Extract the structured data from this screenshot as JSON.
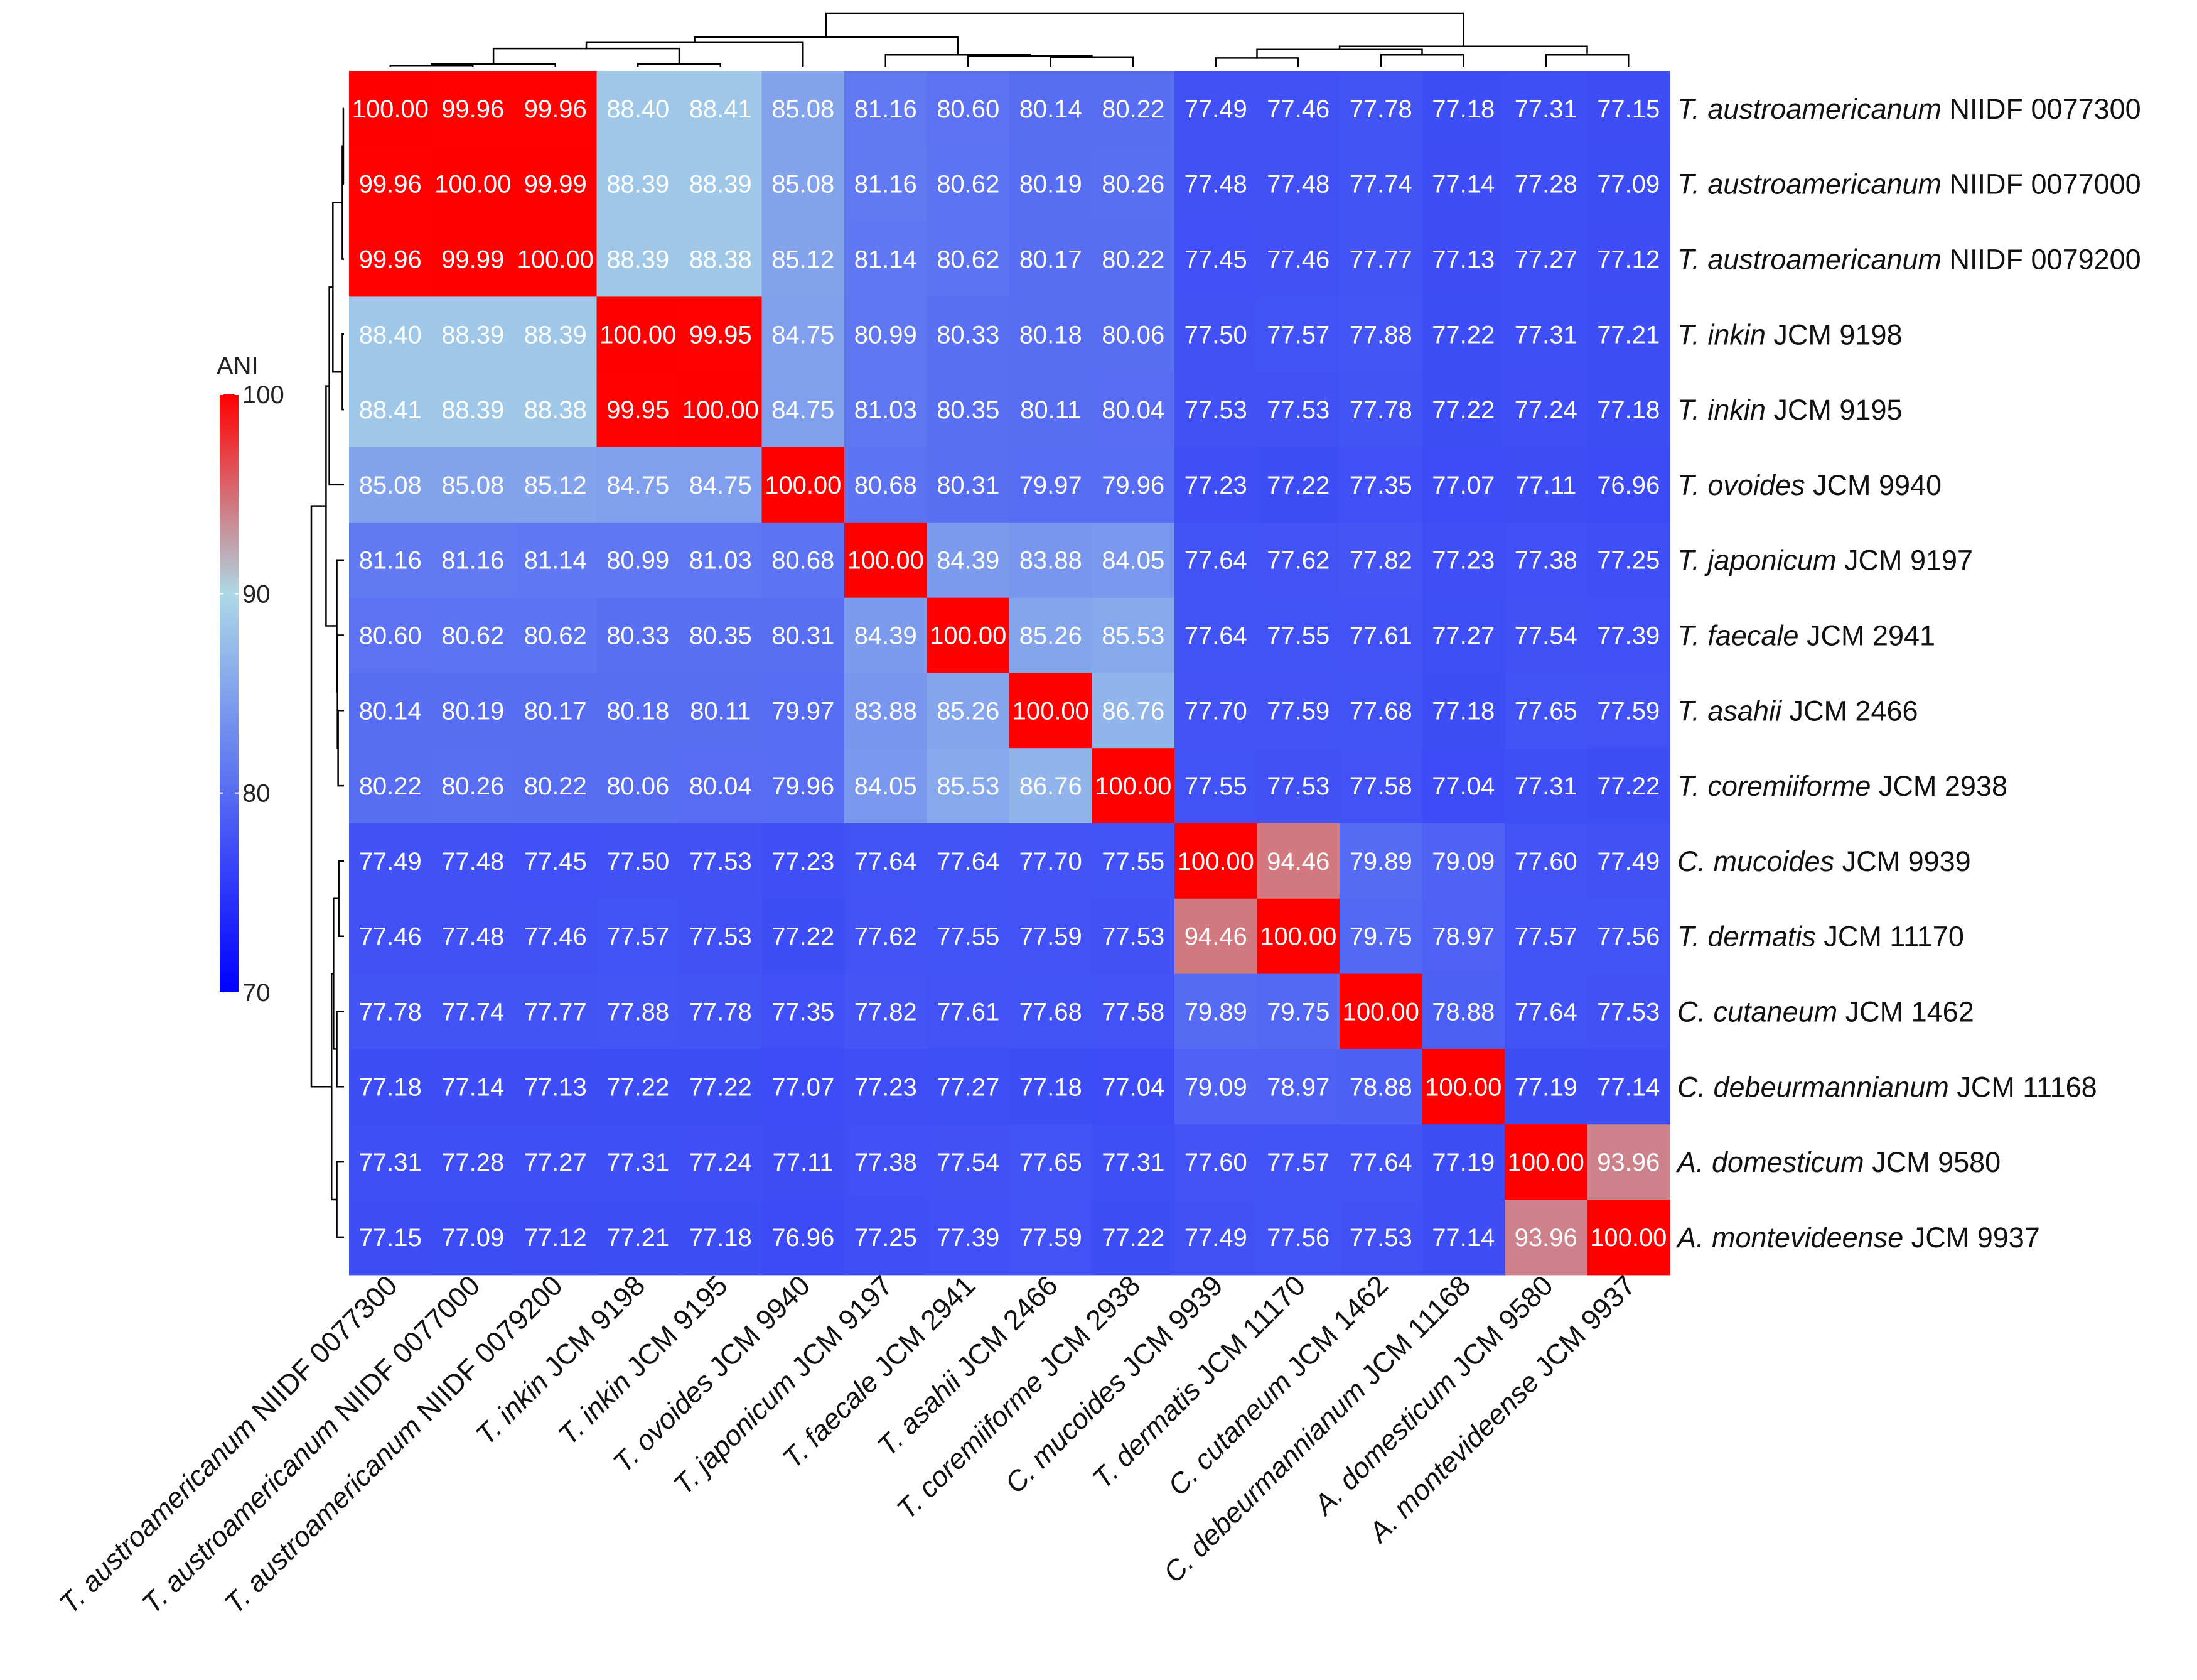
{
  "chart_data": {
    "type": "heatmap",
    "title": "",
    "labels": [
      {
        "italic": "T. austroamericanum",
        "rest": " NIIDF 0077300"
      },
      {
        "italic": "T. austroamericanum",
        "rest": " NIIDF 0077000"
      },
      {
        "italic": "T. austroamericanum",
        "rest": " NIIDF 0079200"
      },
      {
        "italic": "T. inkin",
        "rest": " JCM 9198"
      },
      {
        "italic": "T. inkin",
        "rest": " JCM 9195"
      },
      {
        "italic": "T. ovoides",
        "rest": " JCM 9940"
      },
      {
        "italic": "T. japonicum",
        "rest": " JCM 9197"
      },
      {
        "italic": "T. faecale",
        "rest": " JCM 2941"
      },
      {
        "italic": "T. asahii",
        "rest": " JCM 2466"
      },
      {
        "italic": "T. coremiiforme",
        "rest": " JCM 2938"
      },
      {
        "italic": "C. mucoides",
        "rest": " JCM 9939"
      },
      {
        "italic": "T. dermatis",
        "rest": " JCM 11170"
      },
      {
        "italic": "C. cutaneum",
        "rest": " JCM 1462"
      },
      {
        "italic": "C. debeurmannianum",
        "rest": " JCM 11168"
      },
      {
        "italic": "A. domesticum",
        "rest": " JCM 9580"
      },
      {
        "italic": "A. montevideense",
        "rest": " JCM 9937"
      }
    ],
    "values": [
      [
        "100.00",
        "99.96",
        "99.96",
        "88.40",
        "88.41",
        "85.08",
        "81.16",
        "80.60",
        "80.14",
        "80.22",
        "77.49",
        "77.46",
        "77.78",
        "77.18",
        "77.31",
        "77.15"
      ],
      [
        "99.96",
        "100.00",
        "99.99",
        "88.39",
        "88.39",
        "85.08",
        "81.16",
        "80.62",
        "80.19",
        "80.26",
        "77.48",
        "77.48",
        "77.74",
        "77.14",
        "77.28",
        "77.09"
      ],
      [
        "99.96",
        "99.99",
        "100.00",
        "88.39",
        "88.38",
        "85.12",
        "81.14",
        "80.62",
        "80.17",
        "80.22",
        "77.45",
        "77.46",
        "77.77",
        "77.13",
        "77.27",
        "77.12"
      ],
      [
        "88.40",
        "88.39",
        "88.39",
        "100.00",
        "99.95",
        "84.75",
        "80.99",
        "80.33",
        "80.18",
        "80.06",
        "77.50",
        "77.57",
        "77.88",
        "77.22",
        "77.31",
        "77.21"
      ],
      [
        "88.41",
        "88.39",
        "88.38",
        "99.95",
        "100.00",
        "84.75",
        "81.03",
        "80.35",
        "80.11",
        "80.04",
        "77.53",
        "77.53",
        "77.78",
        "77.22",
        "77.24",
        "77.18"
      ],
      [
        "85.08",
        "85.08",
        "85.12",
        "84.75",
        "84.75",
        "100.00",
        "80.68",
        "80.31",
        "79.97",
        "79.96",
        "77.23",
        "77.22",
        "77.35",
        "77.07",
        "77.11",
        "76.96"
      ],
      [
        "81.16",
        "81.16",
        "81.14",
        "80.99",
        "81.03",
        "80.68",
        "100.00",
        "84.39",
        "83.88",
        "84.05",
        "77.64",
        "77.62",
        "77.82",
        "77.23",
        "77.38",
        "77.25"
      ],
      [
        "80.60",
        "80.62",
        "80.62",
        "80.33",
        "80.35",
        "80.31",
        "84.39",
        "100.00",
        "85.26",
        "85.53",
        "77.64",
        "77.55",
        "77.61",
        "77.27",
        "77.54",
        "77.39"
      ],
      [
        "80.14",
        "80.19",
        "80.17",
        "80.18",
        "80.11",
        "79.97",
        "83.88",
        "85.26",
        "100.00",
        "86.76",
        "77.70",
        "77.59",
        "77.68",
        "77.18",
        "77.65",
        "77.59"
      ],
      [
        "80.22",
        "80.26",
        "80.22",
        "80.06",
        "80.04",
        "79.96",
        "84.05",
        "85.53",
        "86.76",
        "100.00",
        "77.55",
        "77.53",
        "77.58",
        "77.04",
        "77.31",
        "77.22"
      ],
      [
        "77.49",
        "77.48",
        "77.45",
        "77.50",
        "77.53",
        "77.23",
        "77.64",
        "77.64",
        "77.70",
        "77.55",
        "100.00",
        "94.46",
        "79.89",
        "79.09",
        "77.60",
        "77.49"
      ],
      [
        "77.46",
        "77.48",
        "77.46",
        "77.57",
        "77.53",
        "77.22",
        "77.62",
        "77.55",
        "77.59",
        "77.53",
        "94.46",
        "100.00",
        "79.75",
        "78.97",
        "77.57",
        "77.56"
      ],
      [
        "77.78",
        "77.74",
        "77.77",
        "77.88",
        "77.78",
        "77.35",
        "77.82",
        "77.61",
        "77.68",
        "77.58",
        "79.89",
        "79.75",
        "100.00",
        "78.88",
        "77.64",
        "77.53"
      ],
      [
        "77.18",
        "77.14",
        "77.13",
        "77.22",
        "77.22",
        "77.07",
        "77.23",
        "77.27",
        "77.18",
        "77.04",
        "79.09",
        "78.97",
        "78.88",
        "100.00",
        "77.19",
        "77.14"
      ],
      [
        "77.31",
        "77.28",
        "77.27",
        "77.31",
        "77.24",
        "77.11",
        "77.38",
        "77.54",
        "77.65",
        "77.31",
        "77.60",
        "77.57",
        "77.64",
        "77.19",
        "100.00",
        "93.96"
      ],
      [
        "77.15",
        "77.09",
        "77.12",
        "77.21",
        "77.18",
        "76.96",
        "77.25",
        "77.39",
        "77.59",
        "77.22",
        "77.49",
        "77.56",
        "77.53",
        "77.14",
        "93.96",
        "100.00"
      ]
    ],
    "legend": {
      "title": "ANI",
      "min": 70,
      "max": 100,
      "ticks": [
        "100",
        "90",
        "80",
        "70"
      ],
      "colors": {
        "low": "#0000ff",
        "mid": "#add8e6",
        "high": "#ff0000"
      }
    },
    "dendrogram": [
      {
        "a": 0,
        "b": 1,
        "h": 0.02
      },
      {
        "a": "n0",
        "b": 2,
        "h": 0.05
      },
      {
        "a": 3,
        "b": 4,
        "h": 0.05
      },
      {
        "a": "n1",
        "b": "n2",
        "h": 0.34
      },
      {
        "a": "n3",
        "b": 5,
        "h": 0.45
      },
      {
        "a": 8,
        "b": 9,
        "h": 0.18
      },
      {
        "a": 7,
        "b": "n5",
        "h": 0.2
      },
      {
        "a": 6,
        "b": "n6",
        "h": 0.22
      },
      {
        "a": "n4",
        "b": "n7",
        "h": 0.55
      },
      {
        "a": 10,
        "b": 11,
        "h": 0.16
      },
      {
        "a": 12,
        "b": 13,
        "h": 0.22
      },
      {
        "a": "n9",
        "b": "n10",
        "h": 0.32
      },
      {
        "a": 14,
        "b": 15,
        "h": 0.22
      },
      {
        "a": "n11",
        "b": "n12",
        "h": 0.38
      },
      {
        "a": "n8",
        "b": "n13",
        "h": 1.0
      }
    ]
  }
}
